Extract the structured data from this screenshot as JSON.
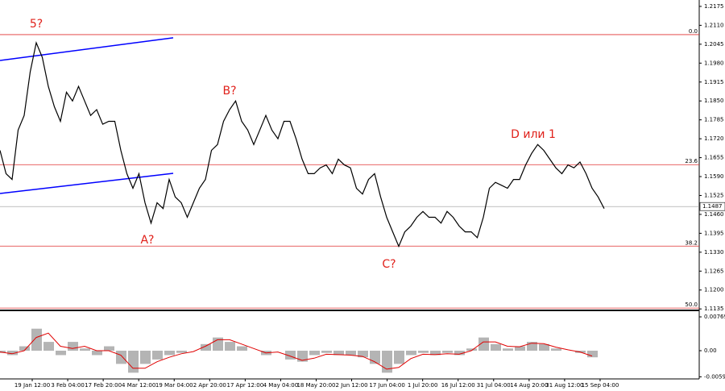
{
  "chart_data": {
    "type": "line",
    "values": [
      1.168,
      1.16,
      1.158,
      1.175,
      1.18,
      1.195,
      1.205,
      1.2,
      1.19,
      1.183,
      1.178,
      1.188,
      1.185,
      1.19,
      1.185,
      1.18,
      1.182,
      1.177,
      1.178,
      1.178,
      1.168,
      1.16,
      1.155,
      1.16,
      1.15,
      1.143,
      1.15,
      1.148,
      1.158,
      1.152,
      1.15,
      1.145,
      1.15,
      1.155,
      1.158,
      1.168,
      1.17,
      1.178,
      1.182,
      1.185,
      1.178,
      1.175,
      1.17,
      1.175,
      1.18,
      1.175,
      1.172,
      1.178,
      1.178,
      1.172,
      1.165,
      1.16,
      1.16,
      1.162,
      1.163,
      1.16,
      1.165,
      1.163,
      1.162,
      1.155,
      1.153,
      1.158,
      1.16,
      1.152,
      1.145,
      1.14,
      1.135,
      1.14,
      1.142,
      1.145,
      1.147,
      1.145,
      1.145,
      1.143,
      1.147,
      1.145,
      1.142,
      1.14,
      1.14,
      1.138,
      1.145,
      1.155,
      1.157,
      1.156,
      1.155,
      1.158,
      1.158,
      1.163,
      1.167,
      1.17,
      1.168,
      1.165,
      1.162,
      1.16,
      1.163,
      1.162,
      1.164,
      1.16,
      1.155,
      1.152,
      1.148
    ],
    "color": "#000000",
    "ylim": [
      1.113,
      1.2197
    ],
    "yticks": [
      1.2175,
      {
        "value": 1.211,
        "label": "1.2110"
      },
      1.2045,
      {
        "value": 1.198,
        "label": "1.1980"
      },
      1.1915,
      {
        "value": 1.185,
        "label": "1.1850"
      },
      1.1785,
      {
        "value": 1.172,
        "label": "1.1720"
      },
      1.1655,
      {
        "value": 1.159,
        "label": "1.1590"
      },
      1.1525,
      {
        "value": 1.146,
        "label": "1.1460"
      },
      1.1395,
      {
        "value": 1.133,
        "label": "1.1330"
      },
      1.1265,
      {
        "value": 1.12,
        "label": "1.1200"
      },
      1.1135
    ],
    "current_price": 1.1487,
    "fib_levels": [
      {
        "value": 1.2078,
        "label": "0.0"
      },
      {
        "value": 1.1631,
        "label": "23.6"
      },
      {
        "value": 1.1351,
        "label": "38.2"
      },
      {
        "value": 1.1138,
        "label": "50.0"
      }
    ],
    "trendlines": [
      {
        "color": "#0000ff",
        "values": [
          1.1989,
          1.2067
        ]
      },
      {
        "color": "#0000ff",
        "values": [
          1.1532,
          1.1601
        ]
      }
    ],
    "wave_labels": [
      "5?",
      "B?",
      "A?",
      "C?",
      "D или 1"
    ],
    "x_labels": [
      "19 Jan 12:00",
      "3 Feb 04:00",
      "17 Feb 20:00",
      "4 Mar 12:00",
      "19 Mar 04:00",
      "2 Apr 20:00",
      "17 Apr 12:00",
      "4 May 04:00",
      "18 May 20:00",
      "2 Jun 12:00",
      "17 Jun 04:00",
      "1 Jul 20:00",
      "16 Jul 12:00",
      "31 Jul 04:00",
      "14 Aug 20:00",
      "31 Aug 12:00",
      "15 Sep 04:00"
    ],
    "oscillator": {
      "ylim": [
        -0.00641,
        0.00861
      ],
      "yticks": [
        0.00769,
        {
          "value": 0,
          "label": "0.00"
        },
        -0.00593
      ],
      "histogram": [
        -0.0005,
        -0.001,
        0.001,
        0.005,
        0.002,
        -0.001,
        0.002,
        0.0005,
        -0.001,
        0.001,
        -0.003,
        -0.005,
        -0.003,
        -0.002,
        -0.001,
        -0.0005,
        0,
        0.0015,
        0.003,
        0.002,
        0.001,
        0,
        -0.001,
        0,
        -0.002,
        -0.0025,
        -0.001,
        -0.0005,
        -0.001,
        -0.001,
        -0.0015,
        -0.003,
        -0.005,
        -0.003,
        -0.001,
        -0.0005,
        -0.001,
        -0.0005,
        -0.001,
        0.0005,
        0.003,
        0.0015,
        0.0005,
        0.001,
        0.002,
        0.0015,
        0.0005,
        0,
        -0.0005,
        -0.0015
      ],
      "signal": [
        -0.0003,
        -0.0007,
        0,
        0.003,
        0.004,
        0.001,
        0.0005,
        0.001,
        0,
        0,
        -0.001,
        -0.004,
        -0.004,
        -0.0025,
        -0.0015,
        -0.0007,
        -0.0002,
        0.001,
        0.0025,
        0.0025,
        0.0015,
        0.0005,
        -0.0005,
        -0.0003,
        -0.0012,
        -0.0022,
        -0.0017,
        -0.0008,
        -0.0009,
        -0.001,
        -0.0013,
        -0.0025,
        -0.0042,
        -0.0038,
        -0.0018,
        -0.0008,
        -0.0009,
        -0.0007,
        -0.0008,
        0,
        0.002,
        0.002,
        0.001,
        0.0009,
        0.0017,
        0.0016,
        0.0008,
        0.0002,
        -0.0003,
        -0.0012
      ],
      "histogram_color": "#b4b4b4",
      "signal_color": "#e00000"
    }
  }
}
